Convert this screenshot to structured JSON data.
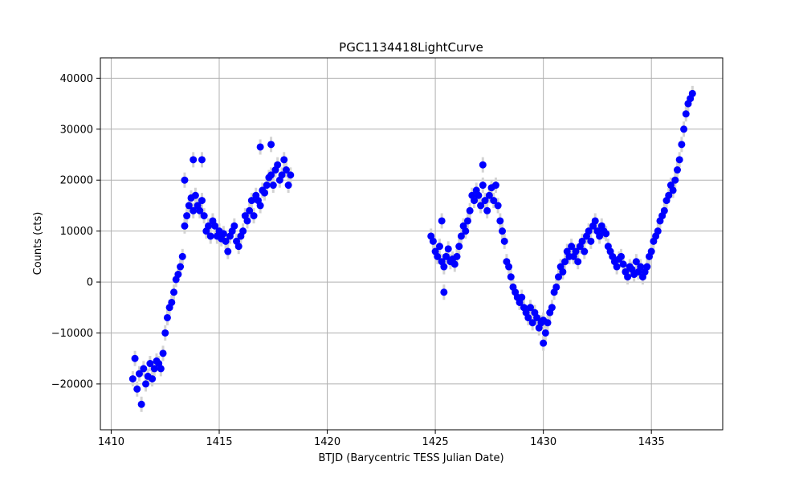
{
  "chart_data": {
    "type": "scatter",
    "title": "PGC1134418LightCurve",
    "xlabel": "BTJD (Barycentric TESS Julian Date)",
    "ylabel": "Counts (cts)",
    "xlim": [
      1409.5,
      1438.3
    ],
    "ylim": [
      -29000,
      44000
    ],
    "x_ticks": [
      1410,
      1415,
      1420,
      1425,
      1430,
      1435
    ],
    "x_tick_labels": [
      "1410",
      "1415",
      "1420",
      "1425",
      "1430",
      "1435"
    ],
    "y_ticks": [
      -20000,
      -10000,
      0,
      10000,
      20000,
      30000,
      40000
    ],
    "y_tick_labels": [
      "−20000",
      "−10000",
      "0",
      "10000",
      "20000",
      "30000",
      "40000"
    ],
    "grid": true,
    "marker_color": "#0000ff",
    "errorbar_color": "#d3d3d3",
    "error_typical": 1500,
    "series": [
      {
        "x": [
          1411.0,
          1411.1,
          1411.2,
          1411.3,
          1411.4,
          1411.5,
          1411.6,
          1411.7,
          1411.8,
          1411.9,
          1412.0,
          1412.1,
          1412.2,
          1412.3,
          1412.4,
          1412.5,
          1412.6,
          1412.7,
          1412.8,
          1412.9,
          1413.0,
          1413.1,
          1413.2,
          1413.3,
          1413.4,
          1413.5,
          1413.6,
          1413.7,
          1413.8,
          1413.9,
          1414.0,
          1414.1,
          1414.2,
          1414.3,
          1414.4,
          1414.5,
          1414.6,
          1414.7,
          1414.8,
          1414.9,
          1415.0,
          1415.1,
          1415.2,
          1415.3,
          1415.4,
          1415.5,
          1415.6,
          1415.7,
          1415.8,
          1415.9,
          1416.0,
          1416.1,
          1416.2,
          1416.3,
          1416.4,
          1416.5,
          1416.6,
          1416.7,
          1416.8,
          1416.9,
          1417.0,
          1417.1,
          1417.2,
          1417.3,
          1417.4,
          1417.5,
          1417.6,
          1417.7,
          1417.8,
          1417.9,
          1418.0,
          1418.1,
          1418.2,
          1418.3,
          1424.8,
          1424.9,
          1425.0,
          1425.1,
          1425.2,
          1425.3,
          1425.4,
          1425.5,
          1425.6,
          1425.7,
          1425.8,
          1425.9,
          1426.0,
          1426.1,
          1426.2,
          1426.3,
          1426.4,
          1426.5,
          1426.6,
          1426.7,
          1426.8,
          1426.9,
          1427.0,
          1427.1,
          1427.2,
          1427.3,
          1427.4,
          1427.5,
          1427.6,
          1427.7,
          1427.8,
          1427.9,
          1428.0,
          1428.1,
          1428.2,
          1428.3,
          1428.4,
          1428.5,
          1428.6,
          1428.7,
          1428.8,
          1428.9,
          1429.0,
          1429.1,
          1429.2,
          1429.3,
          1429.4,
          1429.5,
          1429.6,
          1429.7,
          1429.8,
          1429.9,
          1430.0,
          1430.1,
          1430.2,
          1430.3,
          1430.4,
          1430.5,
          1430.6,
          1430.7,
          1430.8,
          1430.9,
          1431.0,
          1431.1,
          1431.2,
          1431.3,
          1431.4,
          1431.5,
          1431.6,
          1431.7,
          1431.8,
          1431.9,
          1432.0,
          1432.1,
          1432.2,
          1432.3,
          1432.4,
          1432.5,
          1432.6,
          1432.7,
          1432.8,
          1432.9,
          1433.0,
          1433.1,
          1433.2,
          1433.3,
          1433.4,
          1433.5,
          1433.6,
          1433.7,
          1433.8,
          1433.9,
          1434.0,
          1434.1,
          1434.2,
          1434.3,
          1434.4,
          1434.5,
          1434.6,
          1434.7,
          1434.8,
          1434.9,
          1435.0,
          1435.1,
          1435.2,
          1435.3,
          1435.4,
          1435.5,
          1435.6,
          1435.7,
          1435.8,
          1435.9,
          1436.0,
          1436.1,
          1436.2,
          1436.3,
          1436.4,
          1436.5,
          1436.6,
          1436.7,
          1436.8,
          1436.9,
          1413.4,
          1413.8,
          1414.2,
          1416.9,
          1417.4,
          1425.3,
          1425.4,
          1427.2,
          1430.0
        ],
        "y": [
          -19000,
          -15000,
          -21000,
          -18000,
          -24000,
          -17000,
          -20000,
          -18500,
          -16000,
          -19000,
          -17000,
          -15500,
          -16000,
          -17000,
          -14000,
          -10000,
          -7000,
          -5000,
          -4000,
          -2000,
          500,
          1500,
          3000,
          5000,
          11000,
          13000,
          15000,
          16500,
          14000,
          17000,
          15000,
          14000,
          16000,
          13000,
          10000,
          11000,
          9000,
          12000,
          11000,
          9000,
          10000,
          8500,
          9500,
          8000,
          6000,
          9000,
          10000,
          11000,
          8000,
          7000,
          9000,
          10000,
          13000,
          12000,
          14000,
          16000,
          13000,
          17000,
          16000,
          15000,
          18000,
          17500,
          19000,
          20500,
          21000,
          19000,
          22000,
          23000,
          20000,
          21000,
          24000,
          22000,
          19000,
          21000,
          9000,
          8000,
          6000,
          5000,
          7000,
          4000,
          3000,
          5000,
          6500,
          4000,
          4500,
          3500,
          5000,
          7000,
          9000,
          11000,
          10000,
          12000,
          14000,
          17000,
          16000,
          18000,
          17000,
          15000,
          19000,
          16000,
          14000,
          17000,
          18500,
          16000,
          19000,
          15000,
          12000,
          10000,
          8000,
          4000,
          3000,
          1000,
          -1000,
          -2000,
          -3000,
          -4000,
          -3000,
          -5000,
          -6000,
          -7000,
          -5000,
          -8000,
          -6000,
          -7000,
          -9000,
          -8000,
          -7500,
          -10000,
          -8000,
          -6000,
          -5000,
          -2000,
          -1000,
          1000,
          3000,
          2000,
          4000,
          6000,
          5000,
          7000,
          5000,
          6000,
          4000,
          7000,
          8000,
          6000,
          9000,
          10000,
          8000,
          11000,
          12000,
          10000,
          9000,
          11000,
          10000,
          9500,
          7000,
          6000,
          5000,
          4000,
          3000,
          4500,
          5000,
          3500,
          2000,
          1000,
          3000,
          2500,
          1500,
          4000,
          2000,
          3000,
          1000,
          2000,
          3000,
          5000,
          6000,
          8000,
          9000,
          10000,
          12000,
          13000,
          14000,
          16000,
          17000,
          19000,
          18000,
          20000,
          22000,
          24000,
          27000,
          30000,
          33000,
          35000,
          36000,
          37000,
          20000,
          24000,
          24000,
          26500,
          27000,
          12000,
          -2000,
          23000,
          -12000
        ]
      }
    ]
  }
}
